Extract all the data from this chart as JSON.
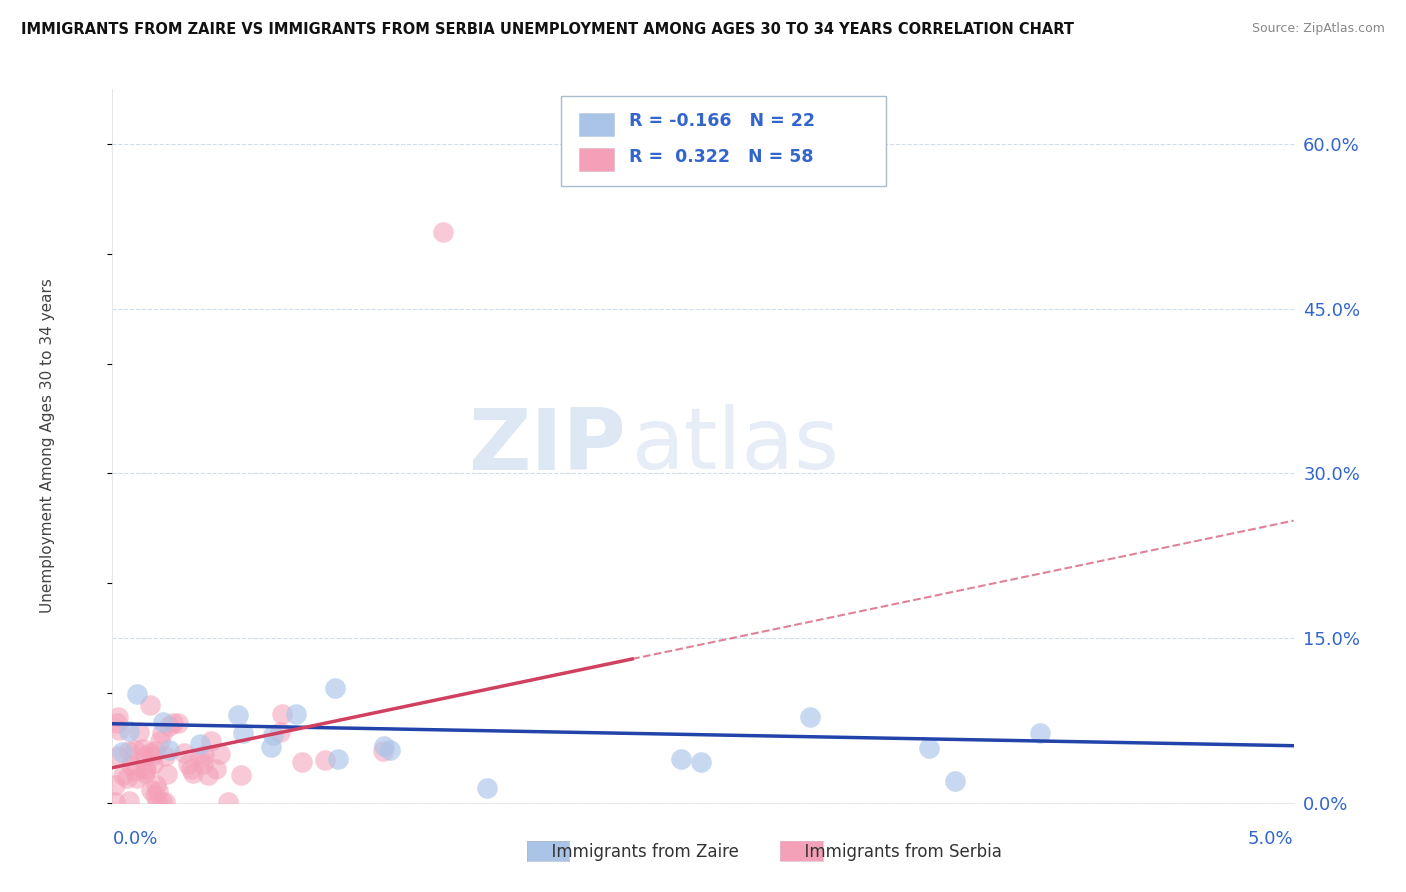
{
  "title": "IMMIGRANTS FROM ZAIRE VS IMMIGRANTS FROM SERBIA UNEMPLOYMENT AMONG AGES 30 TO 34 YEARS CORRELATION CHART",
  "source": "Source: ZipAtlas.com",
  "xlim": [
    0.0,
    0.05
  ],
  "ylim": [
    0.0,
    0.65
  ],
  "ylabel_values": [
    0.0,
    0.15,
    0.3,
    0.45,
    0.6
  ],
  "ylabel_labels": [
    "0.0%",
    "15.0%",
    "30.0%",
    "45.0%",
    "60.0%"
  ],
  "legend_zaire": "Immigrants from Zaire",
  "legend_serbia": "Immigrants from Serbia",
  "R_zaire": -0.166,
  "N_zaire": 22,
  "R_serbia": 0.322,
  "N_serbia": 58,
  "color_zaire": "#aac4e8",
  "color_serbia": "#f4a0b8",
  "line_color_zaire": "#2244aa",
  "line_color_serbia": "#d04060",
  "watermark_zip": "ZIP",
  "watermark_atlas": "atlas",
  "background_color": "#ffffff",
  "grid_color": "#ccddee",
  "axis_label_color": "#3366cc",
  "title_color": "#111111",
  "source_color": "#888888",
  "ylabel_text": "Unemployment Among Ages 30 to 34 years"
}
